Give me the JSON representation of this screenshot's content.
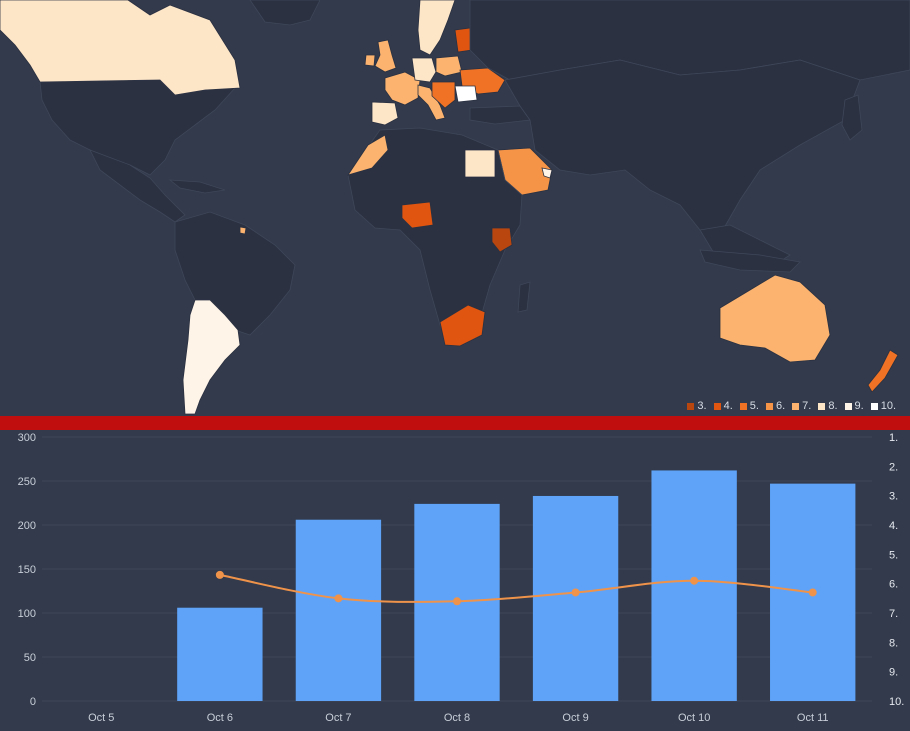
{
  "colors": {
    "background": "#323a4b",
    "land": "#2b3141",
    "divider": "#c00d0d",
    "bar": "#5ea3f8",
    "line": "#f0934a"
  },
  "map": {
    "choropleth_scale": [
      {
        "label": "3.",
        "color": "#b8460e"
      },
      {
        "label": "4.",
        "color": "#e0550f"
      },
      {
        "label": "5.",
        "color": "#f07224"
      },
      {
        "label": "6.",
        "color": "#f59447"
      },
      {
        "label": "7.",
        "color": "#fbb36f"
      },
      {
        "label": "8.",
        "color": "#fde5c8"
      },
      {
        "label": "9.",
        "color": "#fff4e8"
      },
      {
        "label": "10.",
        "color": "#ffffff"
      }
    ]
  },
  "chart_data": {
    "type": "bar",
    "categories": [
      "Oct 5",
      "Oct 6",
      "Oct 7",
      "Oct 8",
      "Oct 9",
      "Oct 10",
      "Oct 11"
    ],
    "series": [
      {
        "type": "bar",
        "axis": "left",
        "values": [
          0,
          106,
          206,
          224,
          233,
          262,
          247
        ]
      },
      {
        "type": "line",
        "axis": "right",
        "values": [
          null,
          5.7,
          6.5,
          6.6,
          6.3,
          5.9,
          6.3
        ]
      }
    ],
    "ylim": [
      0,
      300
    ],
    "yticks": [
      "300",
      "250",
      "200",
      "150",
      "100",
      "50",
      "0"
    ],
    "y2lim": [
      1,
      10
    ],
    "y2_reversed": true,
    "y2ticks": [
      "1.",
      "2.",
      "3.",
      "4.",
      "5.",
      "6.",
      "7.",
      "8.",
      "9.",
      "10."
    ],
    "grid": true
  }
}
